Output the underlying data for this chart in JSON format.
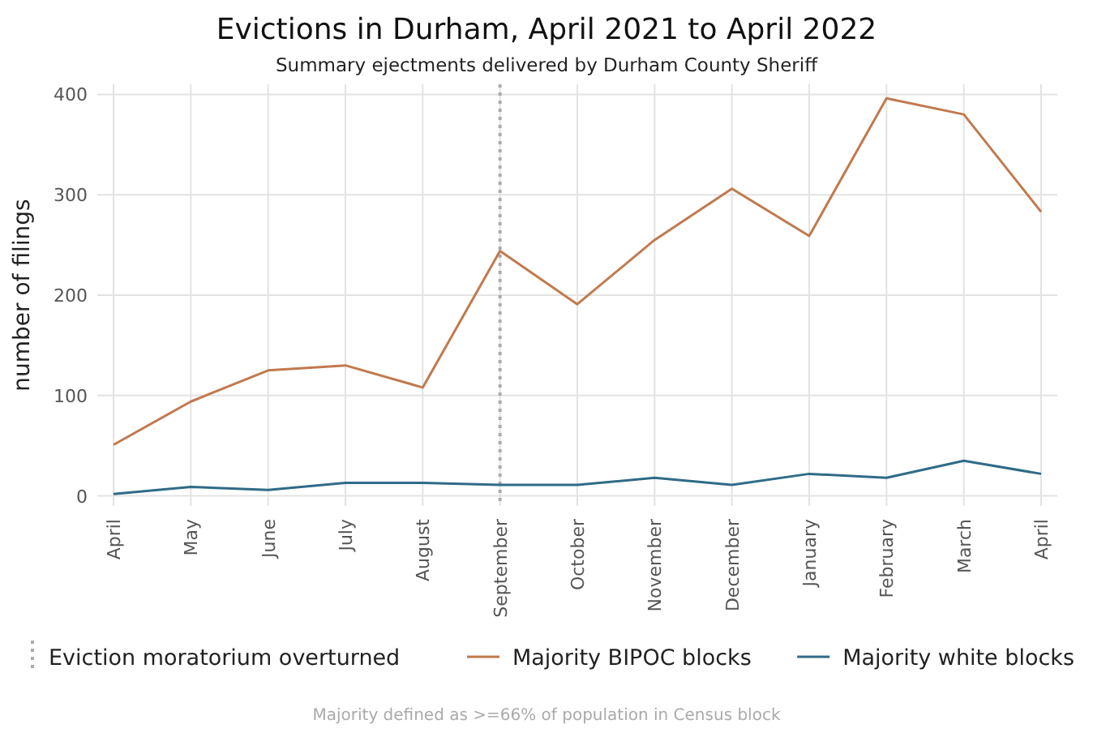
{
  "chart_data": {
    "type": "line",
    "title": "Evictions in Durham, April 2021 to April 2022",
    "subtitle": "Summary ejectments delivered by Durham County Sheriff",
    "ylabel": "number of filings",
    "categories": [
      "April",
      "May",
      "June",
      "July",
      "August",
      "September",
      "October",
      "November",
      "December",
      "January",
      "February",
      "March",
      "April"
    ],
    "series": [
      {
        "name": "Majority BIPOC blocks",
        "color": "#c07a4e",
        "values": [
          51,
          94,
          125,
          130,
          108,
          244,
          191,
          255,
          306,
          259,
          396,
          380,
          283
        ]
      },
      {
        "name": "Majority white blocks",
        "color": "#2f6b87",
        "values": [
          2,
          9,
          6,
          13,
          13,
          11,
          11,
          18,
          11,
          22,
          18,
          35,
          22
        ]
      }
    ],
    "ylim": [
      -10,
      410
    ],
    "yticks": [
      0,
      100,
      200,
      300,
      400
    ],
    "grid": true,
    "legend": "bottom",
    "marker": "none",
    "line_style": "solid",
    "ref_lines": [
      {
        "axis": "x",
        "value": "September",
        "label": "Eviction moratorium overturned",
        "color": "#b0a8b0",
        "line_style": "dotted"
      }
    ],
    "annotations": [
      "Majority defined as >=66% of population in Census block"
    ]
  }
}
